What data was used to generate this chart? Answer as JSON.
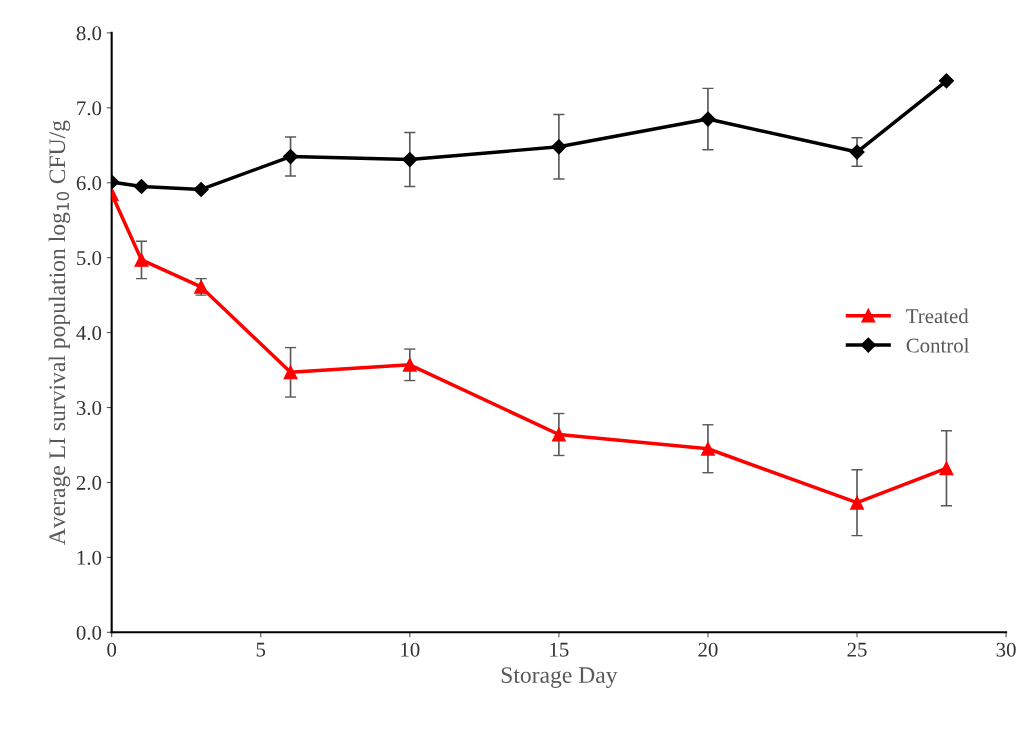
{
  "chart_data": {
    "type": "line",
    "xlabel": "Storage Day",
    "ylabel": "Average LI survival population log$_{10}$ CFU/g",
    "xlim": [
      0,
      30
    ],
    "xticks": [
      0,
      5,
      10,
      15,
      20,
      25,
      30
    ],
    "ylim": [
      0,
      8
    ],
    "yticks": [
      {
        "value": 0,
        "label": "0.0"
      },
      {
        "value": 1,
        "label": "1.0"
      },
      {
        "value": 2,
        "label": "2.0"
      },
      {
        "value": 3,
        "label": "3.0"
      },
      {
        "value": 4,
        "label": "4.0"
      },
      {
        "value": 5,
        "label": "5.0"
      },
      {
        "value": 6,
        "label": "6.0"
      },
      {
        "value": 7,
        "label": "7.0"
      },
      {
        "value": 8,
        "label": "8.0"
      }
    ],
    "x": [
      0,
      1,
      3,
      6,
      10,
      15,
      20,
      25,
      28
    ],
    "series": [
      {
        "name": "Treated",
        "color": "#ff0000",
        "marker": "triangle",
        "values": [
          5.85,
          4.97,
          4.61,
          3.47,
          3.57,
          2.64,
          2.45,
          1.73,
          2.19
        ],
        "errors": [
          null,
          0.25,
          0.11,
          0.33,
          0.21,
          0.28,
          0.32,
          0.44,
          0.5
        ]
      },
      {
        "name": "Control",
        "color": "#000000",
        "marker": "diamond",
        "values": [
          6.01,
          5.95,
          5.91,
          6.35,
          6.31,
          6.48,
          6.85,
          6.41,
          7.36
        ],
        "errors": [
          null,
          null,
          null,
          0.26,
          0.36,
          0.43,
          0.41,
          0.19,
          null
        ]
      }
    ],
    "legend": "center right",
    "grid": false,
    "line_style": "solid"
  }
}
